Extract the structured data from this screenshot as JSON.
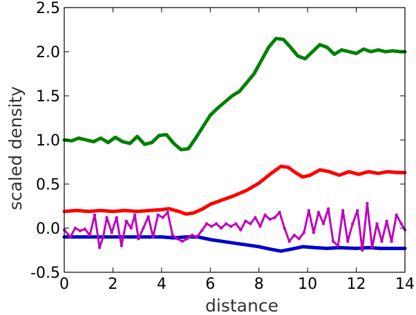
{
  "chart_data": {
    "type": "line",
    "title": "",
    "xlabel": "distance",
    "ylabel": "scaled density",
    "xlim": [
      0,
      14
    ],
    "ylim": [
      -0.5,
      2.5
    ],
    "xticks": [
      "0",
      "2",
      "4",
      "6",
      "8",
      "10",
      "12",
      "14"
    ],
    "yticks": [
      "-0.5",
      "0.0",
      "0.5",
      "1.0",
      "1.5",
      "2.0",
      "2.5"
    ],
    "grid": false,
    "legend": "none",
    "series": [
      {
        "color": "#008000",
        "x": [
          0,
          0.3,
          0.6,
          0.9,
          1.2,
          1.5,
          1.8,
          2.1,
          2.4,
          2.7,
          3.0,
          3.3,
          3.6,
          3.9,
          4.2,
          4.5,
          4.8,
          5.1,
          5.4,
          5.7,
          6.0,
          6.3,
          6.6,
          6.9,
          7.2,
          7.5,
          7.8,
          8.1,
          8.4,
          8.7,
          9.0,
          9.3,
          9.6,
          9.9,
          10.2,
          10.5,
          10.8,
          11.1,
          11.4,
          11.7,
          12.0,
          12.3,
          12.6,
          12.9,
          13.2,
          13.5,
          13.8,
          14.0
        ],
        "y": [
          1.0,
          0.99,
          1.02,
          1.0,
          0.98,
          1.02,
          0.97,
          1.03,
          0.98,
          0.96,
          1.04,
          0.95,
          0.97,
          1.05,
          1.06,
          0.96,
          0.89,
          0.9,
          1.02,
          1.15,
          1.28,
          1.36,
          1.43,
          1.5,
          1.55,
          1.65,
          1.75,
          1.9,
          2.05,
          2.15,
          2.14,
          2.05,
          1.95,
          1.92,
          2.0,
          2.08,
          2.05,
          1.97,
          2.02,
          2.0,
          1.98,
          2.03,
          2.0,
          2.02,
          2.0,
          2.01,
          2.0,
          2.0
        ]
      },
      {
        "color": "#ff0000",
        "x": [
          0,
          0.5,
          1.0,
          1.5,
          2.0,
          2.5,
          3.0,
          3.5,
          4.0,
          4.3,
          4.7,
          5.0,
          5.3,
          5.7,
          6.0,
          6.5,
          7.0,
          7.5,
          8.0,
          8.5,
          8.9,
          9.2,
          9.5,
          9.8,
          10.1,
          10.5,
          10.9,
          11.3,
          11.7,
          12.1,
          12.5,
          12.9,
          13.3,
          13.7,
          14.0
        ],
        "y": [
          0.19,
          0.2,
          0.19,
          0.2,
          0.19,
          0.2,
          0.19,
          0.2,
          0.21,
          0.22,
          0.19,
          0.16,
          0.17,
          0.22,
          0.27,
          0.32,
          0.37,
          0.43,
          0.51,
          0.62,
          0.7,
          0.69,
          0.63,
          0.58,
          0.6,
          0.66,
          0.64,
          0.6,
          0.64,
          0.61,
          0.64,
          0.62,
          0.64,
          0.63,
          0.63
        ]
      },
      {
        "color": "#0000cc",
        "x": [
          0,
          1.0,
          2.0,
          3.0,
          4.0,
          4.5,
          5.0,
          5.5,
          6.0,
          6.5,
          7.0,
          7.5,
          8.0,
          8.5,
          8.9,
          9.3,
          9.8,
          10.3,
          10.8,
          11.3,
          12.0,
          12.5,
          13.0,
          13.5,
          14.0
        ],
        "y": [
          -0.1,
          -0.1,
          -0.1,
          -0.1,
          -0.1,
          -0.11,
          -0.1,
          -0.1,
          -0.13,
          -0.15,
          -0.17,
          -0.19,
          -0.21,
          -0.24,
          -0.26,
          -0.24,
          -0.21,
          -0.22,
          -0.23,
          -0.22,
          -0.23,
          -0.22,
          -0.23,
          -0.23,
          -0.23
        ]
      },
      {
        "color": "#bf00bf",
        "x": [
          0,
          0.25,
          0.45,
          0.65,
          0.85,
          1.05,
          1.25,
          1.45,
          1.6,
          1.75,
          1.95,
          2.15,
          2.35,
          2.55,
          2.75,
          2.9,
          3.05,
          3.25,
          3.45,
          3.65,
          3.85,
          4.05,
          4.25,
          4.45,
          4.65,
          4.85,
          5.05,
          5.25,
          5.45,
          5.65,
          5.85,
          6.05,
          6.25,
          6.45,
          6.65,
          6.85,
          7.05,
          7.25,
          7.45,
          7.65,
          7.85,
          8.05,
          8.25,
          8.45,
          8.65,
          8.85,
          9.05,
          9.25,
          9.45,
          9.65,
          9.85,
          10.05,
          10.25,
          10.45,
          10.65,
          10.85,
          11.05,
          11.25,
          11.45,
          11.65,
          11.85,
          12.05,
          12.25,
          12.45,
          12.65,
          12.85,
          13.05,
          13.25,
          13.45,
          13.65,
          13.85,
          14.0
        ],
        "y": [
          -0.02,
          -0.1,
          0.0,
          -0.03,
          -0.01,
          -0.08,
          0.15,
          -0.22,
          -0.1,
          0.12,
          -0.05,
          0.12,
          -0.2,
          0.08,
          0.0,
          0.15,
          -0.12,
          0.0,
          0.13,
          -0.1,
          0.15,
          0.12,
          0.18,
          -0.08,
          -0.12,
          -0.15,
          -0.12,
          -0.08,
          -0.1,
          -0.03,
          0.05,
          0.02,
          0.05,
          0.0,
          0.05,
          0.02,
          0.05,
          -0.02,
          0.08,
          0.05,
          0.12,
          0.02,
          0.15,
          0.1,
          0.12,
          0.18,
          0.0,
          -0.15,
          -0.08,
          -0.12,
          -0.05,
          0.2,
          -0.05,
          0.18,
          0.05,
          0.22,
          -0.15,
          -0.2,
          0.2,
          -0.15,
          0.05,
          0.2,
          -0.25,
          0.28,
          -0.22,
          0.05,
          -0.15,
          0.08,
          -0.15,
          0.15,
          0.05,
          -0.02
        ]
      }
    ]
  }
}
